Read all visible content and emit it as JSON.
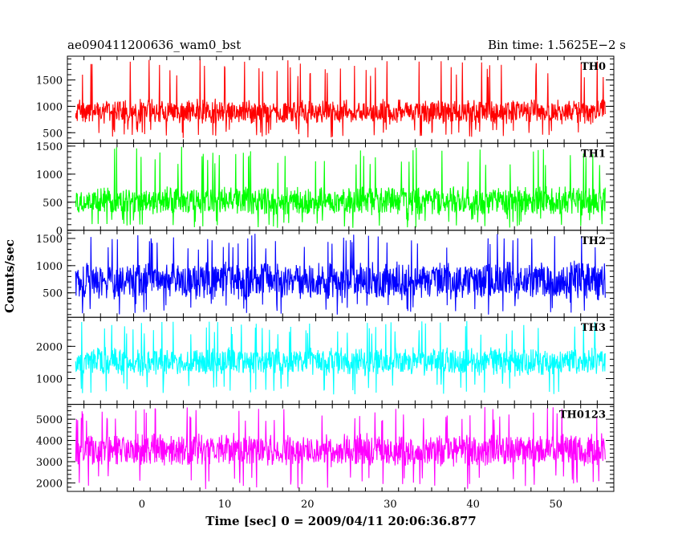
{
  "header": {
    "title": "ae090411200636_wam0_bst",
    "bin_time": "Bin time: 1.5625E−2 s"
  },
  "chart_data": {
    "type": "line",
    "title": "ae090411200636_wam0_bst",
    "subtitle": "Bin time: 1.5625E−2 s",
    "xlabel": "Time [sec] 0 = 2009/04/11 20:06:36.877",
    "ylabel": "Counts/sec",
    "xlim": [
      -9,
      57
    ],
    "data_x_range": [
      -8,
      56
    ],
    "bin_time": 0.015625,
    "x_ticks": [
      0,
      10,
      20,
      30,
      40,
      50
    ],
    "grid": false,
    "panels": [
      {
        "name": "TH0",
        "color": "#ff0000",
        "ylim": [
          300,
          1950
        ],
        "yticks": [
          500,
          1000,
          1500
        ],
        "typical_range": [
          650,
          1150
        ],
        "min": 400,
        "max": 1900
      },
      {
        "name": "TH1",
        "color": "#00ff00",
        "ylim": [
          0,
          1550
        ],
        "yticks": [
          0,
          500,
          1000,
          1500
        ],
        "typical_range": [
          250,
          800
        ],
        "min": 40,
        "max": 1500
      },
      {
        "name": "TH2",
        "color": "#0000ff",
        "ylim": [
          50,
          1650
        ],
        "yticks": [
          500,
          1000,
          1500
        ],
        "typical_range": [
          350,
          1100
        ],
        "min": 100,
        "max": 1600
      },
      {
        "name": "TH3",
        "color": "#00ffff",
        "ylim": [
          200,
          2900
        ],
        "yticks": [
          1000,
          2000
        ],
        "typical_range": [
          1050,
          2000
        ],
        "min": 500,
        "max": 2800
      },
      {
        "name": "TH0123",
        "color": "#ff00ff",
        "ylim": [
          1600,
          5700
        ],
        "yticks": [
          2000,
          3000,
          4000,
          5000
        ],
        "typical_range": [
          2700,
          4400
        ],
        "min": 1700,
        "max": 5600
      }
    ]
  }
}
